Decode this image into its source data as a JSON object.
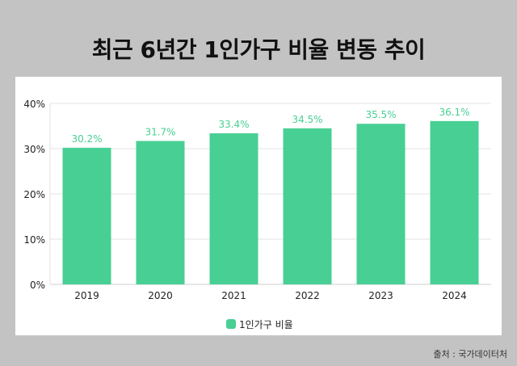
{
  "title": "최근 6년간 1인가구 비율 변동 추이",
  "source": "출처 : 국가데이터처",
  "colors": {
    "bar": "#48cf93",
    "label": "#48cf93",
    "grid": "#e3e3e3",
    "background": "#c3c3c3"
  },
  "chart_data": {
    "type": "bar",
    "title": "",
    "xlabel": "",
    "ylabel": "",
    "categories": [
      "2019",
      "2020",
      "2021",
      "2022",
      "2023",
      "2024"
    ],
    "series": [
      {
        "name": "1인가구 비율",
        "values": [
          30.2,
          31.7,
          33.4,
          34.5,
          35.5,
          36.1
        ]
      }
    ],
    "data_labels": [
      "30.2%",
      "31.7%",
      "33.4%",
      "34.5%",
      "35.5%",
      "36.1%"
    ],
    "ylim": [
      0,
      40
    ],
    "yticks": [
      "0%",
      "10%",
      "20%",
      "30%",
      "40%"
    ],
    "grid": true,
    "legend": "bottom"
  }
}
